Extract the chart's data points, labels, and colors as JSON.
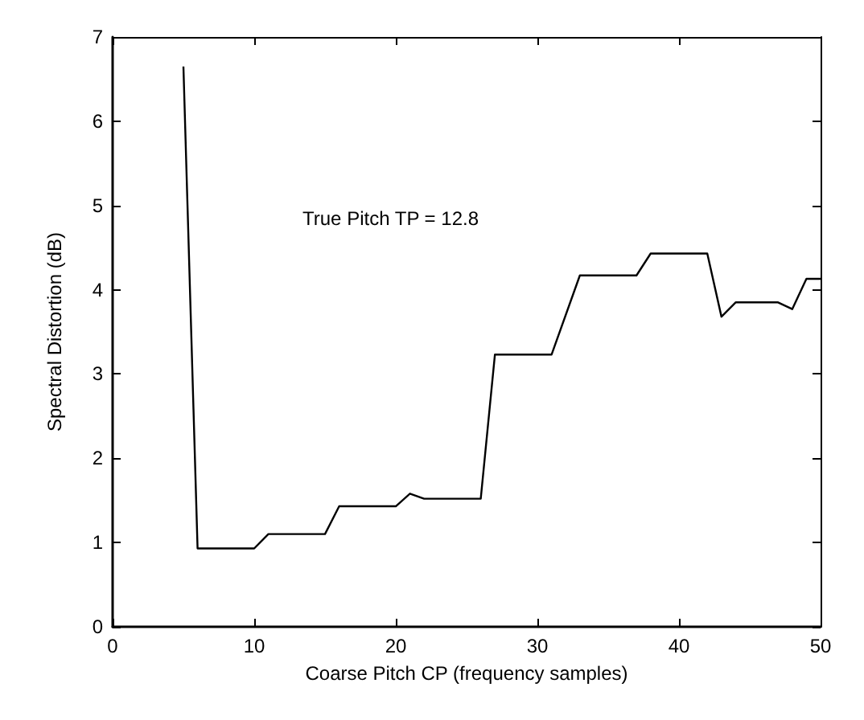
{
  "chart_data": {
    "type": "line",
    "xlabel": "Coarse Pitch CP (frequency samples)",
    "ylabel": "Spectral Distortion (dB)",
    "annotations": [
      "True Pitch TP = 12.8"
    ],
    "x": [
      5,
      6,
      10,
      11,
      15,
      16,
      20,
      21,
      22,
      26,
      27,
      31,
      33,
      37,
      38,
      42,
      43,
      44,
      47,
      48,
      49,
      50
    ],
    "series": [
      {
        "color": "#000000",
        "values": [
          6.65,
          0.93,
          0.93,
          1.1,
          1.1,
          1.43,
          1.43,
          1.58,
          1.52,
          1.52,
          3.23,
          3.23,
          4.17,
          4.17,
          4.43,
          4.43,
          3.68,
          3.85,
          3.85,
          3.77,
          4.13,
          4.13
        ]
      }
    ],
    "xlim": [
      0,
      50
    ],
    "xticks": [
      0,
      10,
      20,
      30,
      40,
      50
    ],
    "ylim": [
      0,
      7
    ],
    "yticks": [
      0,
      1,
      2,
      3,
      4,
      5,
      6,
      7
    ],
    "grid": false,
    "marker": "none",
    "line_style": "solid"
  }
}
